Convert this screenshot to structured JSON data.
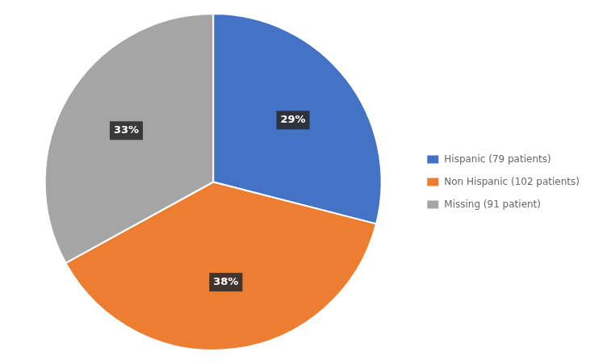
{
  "chart_data": {
    "type": "pie",
    "categories": [
      "Hispanic (79 patients)",
      "Non Hispanic (102 patients)",
      "Missing (91 patient)"
    ],
    "values": [
      29,
      38,
      33
    ],
    "value_labels": [
      "29%",
      "38%",
      "33%"
    ],
    "colors": [
      "#4472C4",
      "#ED7D31",
      "#A5A5A5"
    ],
    "legend": "right",
    "data_labels": true
  }
}
